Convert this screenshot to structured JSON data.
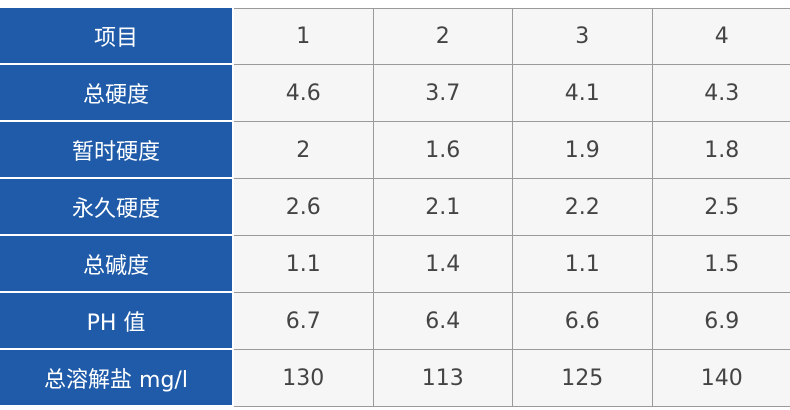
{
  "table": {
    "rows": [
      [
        "项目",
        "1",
        "2",
        "3",
        "4"
      ],
      [
        "总硬度",
        "4.6",
        "3.7",
        "4.1",
        "4.3"
      ],
      [
        "暂时硬度",
        "2",
        "1.6",
        "1.9",
        "1.8"
      ],
      [
        "永久硬度",
        "2.6",
        "2.1",
        "2.2",
        "2.5"
      ],
      [
        "总碱度",
        "1.1",
        "1.4",
        "1.1",
        "1.5"
      ],
      [
        "PH 值",
        "6.7",
        "6.4",
        "6.6",
        "6.9"
      ],
      [
        "总溶解盐 mg/l",
        "130",
        "113",
        "125",
        "140"
      ]
    ]
  }
}
